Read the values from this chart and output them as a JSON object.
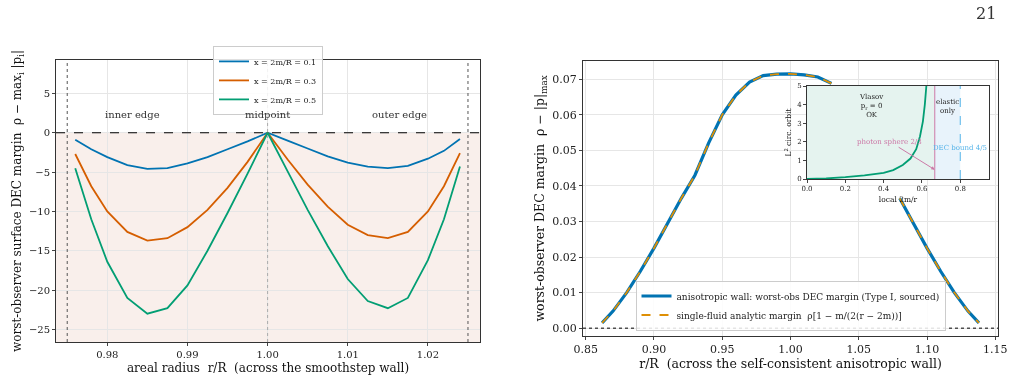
{
  "chart_data": [
    {
      "type": "line",
      "xlabel": "areal radius  r/R  (across the smoothstep wall)",
      "ylabel": "worst-observer surface DEC margin  ρ − max$_{i}$ |p$_{i}$|",
      "xlim": [
        0.9736,
        1.0265
      ],
      "ylim": [
        -26.6,
        9.25
      ],
      "xticks": [
        0.98,
        0.99,
        {
          "value": 1,
          "label": "1.00"
        },
        1.01,
        1.02
      ],
      "yticks": [
        {
          "value": -25,
          "label": "−25"
        },
        {
          "value": -20,
          "label": "−20"
        },
        {
          "value": -15,
          "label": "−15"
        },
        {
          "value": -10,
          "label": "−10"
        },
        {
          "value": -5,
          "label": "−5"
        },
        0,
        5
      ],
      "grid": true,
      "legend": "top",
      "marker": "none",
      "line_style": "solid",
      "series": [
        {
          "name": "x = 2m/R = 0.1",
          "color": "#0173b2",
          "x": [
            0.976,
            0.978,
            0.98,
            0.9825,
            0.985,
            0.9875,
            0.99,
            0.9925,
            0.995,
            0.9975,
            1.0,
            1.0025,
            1.005,
            1.0075,
            1.01,
            1.0125,
            1.015,
            1.0175,
            1.02,
            1.022,
            1.024
          ],
          "values": [
            -0.9,
            -2.1,
            -3.1,
            -4.1,
            -4.6,
            -4.5,
            -3.9,
            -3.1,
            -2.1,
            -1.1,
            0,
            -1.0,
            -2.0,
            -3.0,
            -3.8,
            -4.3,
            -4.5,
            -4.2,
            -3.3,
            -2.3,
            -0.8
          ]
        },
        {
          "name": "x = 2m/R = 0.3",
          "color": "#d55e00",
          "x": [
            0.976,
            0.978,
            0.98,
            0.9825,
            0.985,
            0.9875,
            0.99,
            0.9925,
            0.995,
            0.9975,
            1.0,
            1.0025,
            1.005,
            1.0075,
            1.01,
            1.0125,
            1.015,
            1.0175,
            1.02,
            1.022,
            1.024
          ],
          "values": [
            -2.7,
            -6.8,
            -10.0,
            -12.6,
            -13.7,
            -13.4,
            -12.0,
            -9.8,
            -7.0,
            -3.7,
            0,
            -3.4,
            -6.6,
            -9.4,
            -11.7,
            -13.0,
            -13.4,
            -12.6,
            -10.0,
            -6.8,
            -2.6
          ]
        },
        {
          "name": "x = 2m/R = 0.5",
          "color": "#029e73",
          "x": [
            0.976,
            0.978,
            0.98,
            0.9825,
            0.985,
            0.9875,
            0.99,
            0.9925,
            0.995,
            0.9975,
            1.0,
            1.0025,
            1.005,
            1.0075,
            1.01,
            1.0125,
            1.015,
            1.0175,
            1.02,
            1.022,
            1.024
          ],
          "values": [
            -4.5,
            -11.0,
            -16.4,
            -21.0,
            -23.0,
            -22.3,
            -19.4,
            -15.0,
            -10.2,
            -5.2,
            0,
            -4.9,
            -9.8,
            -14.4,
            -18.6,
            -21.4,
            -22.3,
            -21.0,
            -16.2,
            -11.0,
            -4.3
          ]
        }
      ],
      "ref_lines": [
        {
          "axis": "y",
          "value": 0,
          "color": "#000000",
          "line_style": "dashed"
        },
        {
          "axis": "x",
          "value": 0.975,
          "color": "#555555",
          "line_style": "dotted"
        },
        {
          "axis": "x",
          "value": 1.0,
          "color": "#aaaaaa",
          "line_style": "dotted"
        },
        {
          "axis": "x",
          "value": 1.025,
          "color": "#555555",
          "line_style": "dotted"
        }
      ],
      "bands": [
        {
          "axis": "y",
          "from": -26.6,
          "to": 0,
          "color": "#f9efeb"
        }
      ],
      "annotations": [
        "inner edge",
        {
          "text": "midpoint",
          "x": 1.0,
          "y": 2.3
        },
        "outer edge"
      ]
    },
    {
      "type": "line",
      "xlabel": "r/R  (across the self-consistent anisotropic wall)",
      "ylabel": "worst-observer DEC margin  ρ − |p|$_{max}$",
      "xlim": [
        0.848,
        1.152
      ],
      "ylim": [
        -0.0022,
        0.0751
      ],
      "xticks": [
        0.85,
        {
          "value": 0.9,
          "label": "0.90"
        },
        0.95,
        {
          "value": 1,
          "label": "1.00"
        },
        1.05,
        {
          "value": 1.1,
          "label": "1.10"
        },
        1.15
      ],
      "yticks": [
        {
          "value": 0,
          "label": "0.00"
        },
        0.01,
        0.02,
        0.03,
        0.04,
        0.05,
        0.06,
        0.07
      ],
      "grid": true,
      "legend": "bottom",
      "marker": "none",
      "series": [
        {
          "name": "anisotropic wall: worst-obs DEC margin (Type I, sourced)",
          "color": "#0173b2",
          "line_style": "solid",
          "x": [
            0.862,
            0.87,
            0.88,
            0.89,
            0.9,
            0.91,
            0.92,
            0.93,
            0.94,
            0.95,
            0.96,
            0.97,
            0.98,
            0.99,
            1.0,
            1.01,
            1.02,
            1.03,
            1.04,
            1.05,
            1.06,
            1.07,
            1.08,
            1.09,
            1.1,
            1.11,
            1.12,
            1.13,
            1.138
          ],
          "values": [
            0.0015,
            0.0048,
            0.01,
            0.016,
            0.0225,
            0.0295,
            0.0365,
            0.043,
            0.052,
            0.06,
            0.0655,
            0.0692,
            0.071,
            0.0714,
            0.0715,
            0.0712,
            0.0706,
            0.0688,
            null,
            null,
            null,
            null,
            0.0365,
            0.0295,
            0.0225,
            0.016,
            0.01,
            0.0048,
            0.0015
          ]
        },
        {
          "name": "single-fluid analytic margin  ρ[1 − m/(2(r − 2m))]",
          "color": "#de8f05",
          "line_style": "dashed",
          "x": [
            0.862,
            0.87,
            0.88,
            0.89,
            0.9,
            0.91,
            0.92,
            0.93,
            0.94,
            0.95,
            0.96,
            0.97,
            0.98,
            0.99,
            1.0,
            1.01,
            1.02,
            1.03,
            1.04,
            1.05,
            1.06,
            1.07,
            1.08,
            1.09,
            1.1,
            1.11,
            1.12,
            1.13,
            1.138
          ],
          "values": [
            0.0015,
            0.0048,
            0.01,
            0.016,
            0.0225,
            0.0295,
            0.0365,
            0.043,
            0.052,
            0.06,
            0.0655,
            0.0692,
            0.071,
            0.0714,
            0.0715,
            0.0712,
            0.0706,
            0.0688,
            null,
            null,
            null,
            null,
            0.0365,
            0.0295,
            0.0225,
            0.016,
            0.01,
            0.0048,
            0.0015
          ]
        }
      ],
      "ref_lines": [
        {
          "axis": "y",
          "value": 0,
          "color": "#000000",
          "line_style": "dotted"
        }
      ],
      "annotations": [
        "21"
      ]
    },
    {
      "type": "line",
      "xlabel": "local 2m/r",
      "ylabel": "L$^{2}$ circ. orbit",
      "xlim": [
        0,
        0.95
      ],
      "ylim": [
        0,
        5
      ],
      "xticks": [
        {
          "value": 0,
          "label": "0.0"
        },
        0.2,
        0.4,
        0.6,
        0.8
      ],
      "yticks": [
        0,
        1,
        2,
        3,
        4,
        5
      ],
      "marker": "none",
      "line_style": "solid",
      "series": [
        {
          "color": "#029e73",
          "x": [
            0,
            0.1,
            0.2,
            0.3,
            0.4,
            0.45,
            0.5,
            0.54,
            0.57,
            0.59,
            0.605,
            0.615,
            0.623
          ],
          "values": [
            0,
            0.03,
            0.1,
            0.2,
            0.33,
            0.48,
            0.75,
            1.1,
            1.6,
            2.3,
            3.1,
            4.0,
            5.0
          ]
        }
      ],
      "bands": [
        {
          "axis": "x",
          "from": 0,
          "to": 0.667,
          "color": "#e5f3ef",
          "label": "Vlasov\np$_{r}$ = 0\nOK"
        },
        {
          "axis": "x",
          "from": 0.667,
          "to": 0.8,
          "color": "#e8f3fb",
          "label": "elastic\nonly"
        }
      ],
      "ref_lines": [
        {
          "axis": "x",
          "value": 0.667,
          "color": "#cc79a7",
          "line_style": "solid",
          "label": "photon sphere 2/3"
        },
        {
          "axis": "x",
          "value": 0.8,
          "color": "#56b4e9",
          "line_style": "dashed",
          "label": "DEC bound 4/5"
        }
      ]
    }
  ]
}
